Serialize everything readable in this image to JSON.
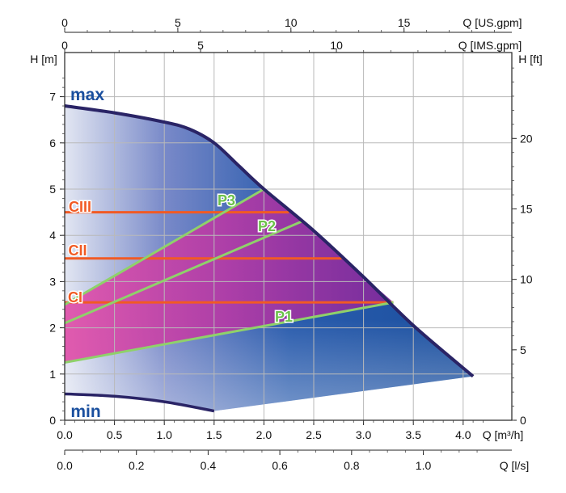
{
  "chart_data": {
    "type": "line",
    "title": "",
    "axes": {
      "y_left": {
        "label": "H [m]",
        "range": [
          0,
          7.7
        ],
        "ticks": [
          0,
          1,
          2,
          3,
          4,
          5,
          6,
          7
        ]
      },
      "y_right": {
        "label": "H [ft]",
        "ticks": [
          0,
          5,
          10,
          15,
          20
        ]
      },
      "x_bottom_primary": {
        "label": "Q [m³/h]",
        "range": [
          0,
          4.4
        ],
        "ticks": [
          "0.0",
          "0.5",
          "1.0",
          "1.5",
          "2.0",
          "2.5",
          "3.0",
          "3.5",
          "4.0"
        ]
      },
      "x_bottom_secondary": {
        "label": "Q [l/s]",
        "ticks": [
          "0.0",
          "0.2",
          "0.4",
          "0.6",
          "0.8",
          "1.0"
        ]
      },
      "x_top_primary": {
        "label": "Q [US.gpm]",
        "ticks": [
          "0",
          "5",
          "10",
          "15"
        ]
      },
      "x_top_secondary": {
        "label": "Q [IMS.gpm]",
        "ticks": [
          "0",
          "5",
          "10"
        ]
      }
    },
    "grid": true,
    "envelope": {
      "max_label": "max",
      "min_label": "min",
      "max_curve": {
        "x": [
          0,
          0.5,
          1.0,
          1.25,
          1.5,
          1.75,
          2.0,
          2.5,
          3.0,
          3.5,
          4.1
        ],
        "y": [
          6.8,
          6.65,
          6.45,
          6.3,
          6.0,
          5.5,
          5.0,
          4.1,
          3.1,
          2.05,
          0.95
        ]
      },
      "min_curve": {
        "x": [
          0,
          0.5,
          1.0,
          1.5
        ],
        "y": [
          0.57,
          0.52,
          0.4,
          0.2
        ]
      },
      "right_edge": {
        "x": [
          1.5,
          4.1
        ],
        "y": [
          0.2,
          0.95
        ]
      }
    },
    "series": [
      {
        "name": "CIII",
        "type": "constant",
        "x": [
          0,
          2.25
        ],
        "y": [
          4.5,
          4.5
        ]
      },
      {
        "name": "CII",
        "type": "constant",
        "x": [
          0,
          2.78
        ],
        "y": [
          3.5,
          3.5
        ]
      },
      {
        "name": "CI",
        "type": "constant",
        "x": [
          0,
          3.3
        ],
        "y": [
          2.55,
          2.55
        ]
      },
      {
        "name": "P3",
        "type": "proportional",
        "x": [
          0,
          2.0
        ],
        "y": [
          2.5,
          5.0
        ]
      },
      {
        "name": "P2",
        "type": "proportional",
        "x": [
          0,
          2.38
        ],
        "y": [
          2.1,
          4.3
        ]
      },
      {
        "name": "P1",
        "type": "proportional",
        "x": [
          0,
          3.3
        ],
        "y": [
          1.25,
          2.55
        ]
      }
    ],
    "colors": {
      "envelope_dark": "#1a4f9e",
      "envelope_light": "#c8d4ec",
      "magenta": "#d9419f",
      "purple": "#8a2a9e",
      "outline": "#2a2466",
      "constant_line": "#f15a24",
      "proportional_line": "#8fd16a",
      "label_green": "#6cc04a"
    }
  }
}
